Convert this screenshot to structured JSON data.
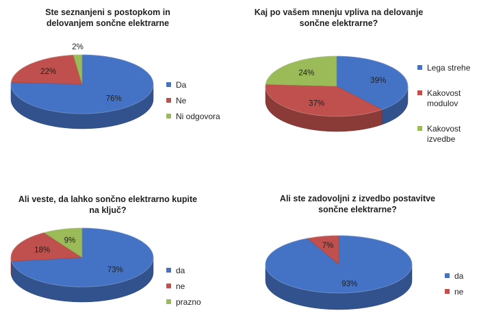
{
  "chart_data": [
    {
      "type": "pie",
      "title": "Ste seznanjeni s postopkom in delovanjem sončne elektrarne",
      "slices": [
        {
          "label": "Da",
          "value": 76,
          "display": "76%",
          "color": "#4472c4"
        },
        {
          "label": "Ne",
          "value": 22,
          "display": "22%",
          "color": "#c0504d"
        },
        {
          "label": "Ni odgovora",
          "value": 2,
          "display": "2%",
          "color": "#9bbb59"
        }
      ],
      "legend_position": "right"
    },
    {
      "type": "pie",
      "title": "Kaj po vašem mnenju vpliva na delovanje sončne elektrarne?",
      "slices": [
        {
          "label": "Lega strehe",
          "value": 39,
          "display": "39%",
          "color": "#4472c4"
        },
        {
          "label": "Kakovost modulov",
          "value": 37,
          "display": "37%",
          "color": "#c0504d"
        },
        {
          "label": "Kakovost izvedbe",
          "value": 24,
          "display": "24%",
          "color": "#9bbb59"
        }
      ],
      "legend_position": "right"
    },
    {
      "type": "pie",
      "title": "Ali veste, da lahko sončno elektrarno kupite na ključ?",
      "slices": [
        {
          "label": "da",
          "value": 73,
          "display": "73%",
          "color": "#4472c4"
        },
        {
          "label": "ne",
          "value": 18,
          "display": "18%",
          "color": "#c0504d"
        },
        {
          "label": "prazno",
          "value": 9,
          "display": "9%",
          "color": "#9bbb59"
        }
      ],
      "legend_position": "right"
    },
    {
      "type": "pie",
      "title": "Ali ste zadovoljni z izvedbo postavitve sončne elektrarne?",
      "slices": [
        {
          "label": "da",
          "value": 93,
          "display": "93%",
          "color": "#4472c4"
        },
        {
          "label": "ne",
          "value": 7,
          "display": "7%",
          "color": "#c0504d"
        }
      ],
      "legend_position": "right"
    }
  ]
}
